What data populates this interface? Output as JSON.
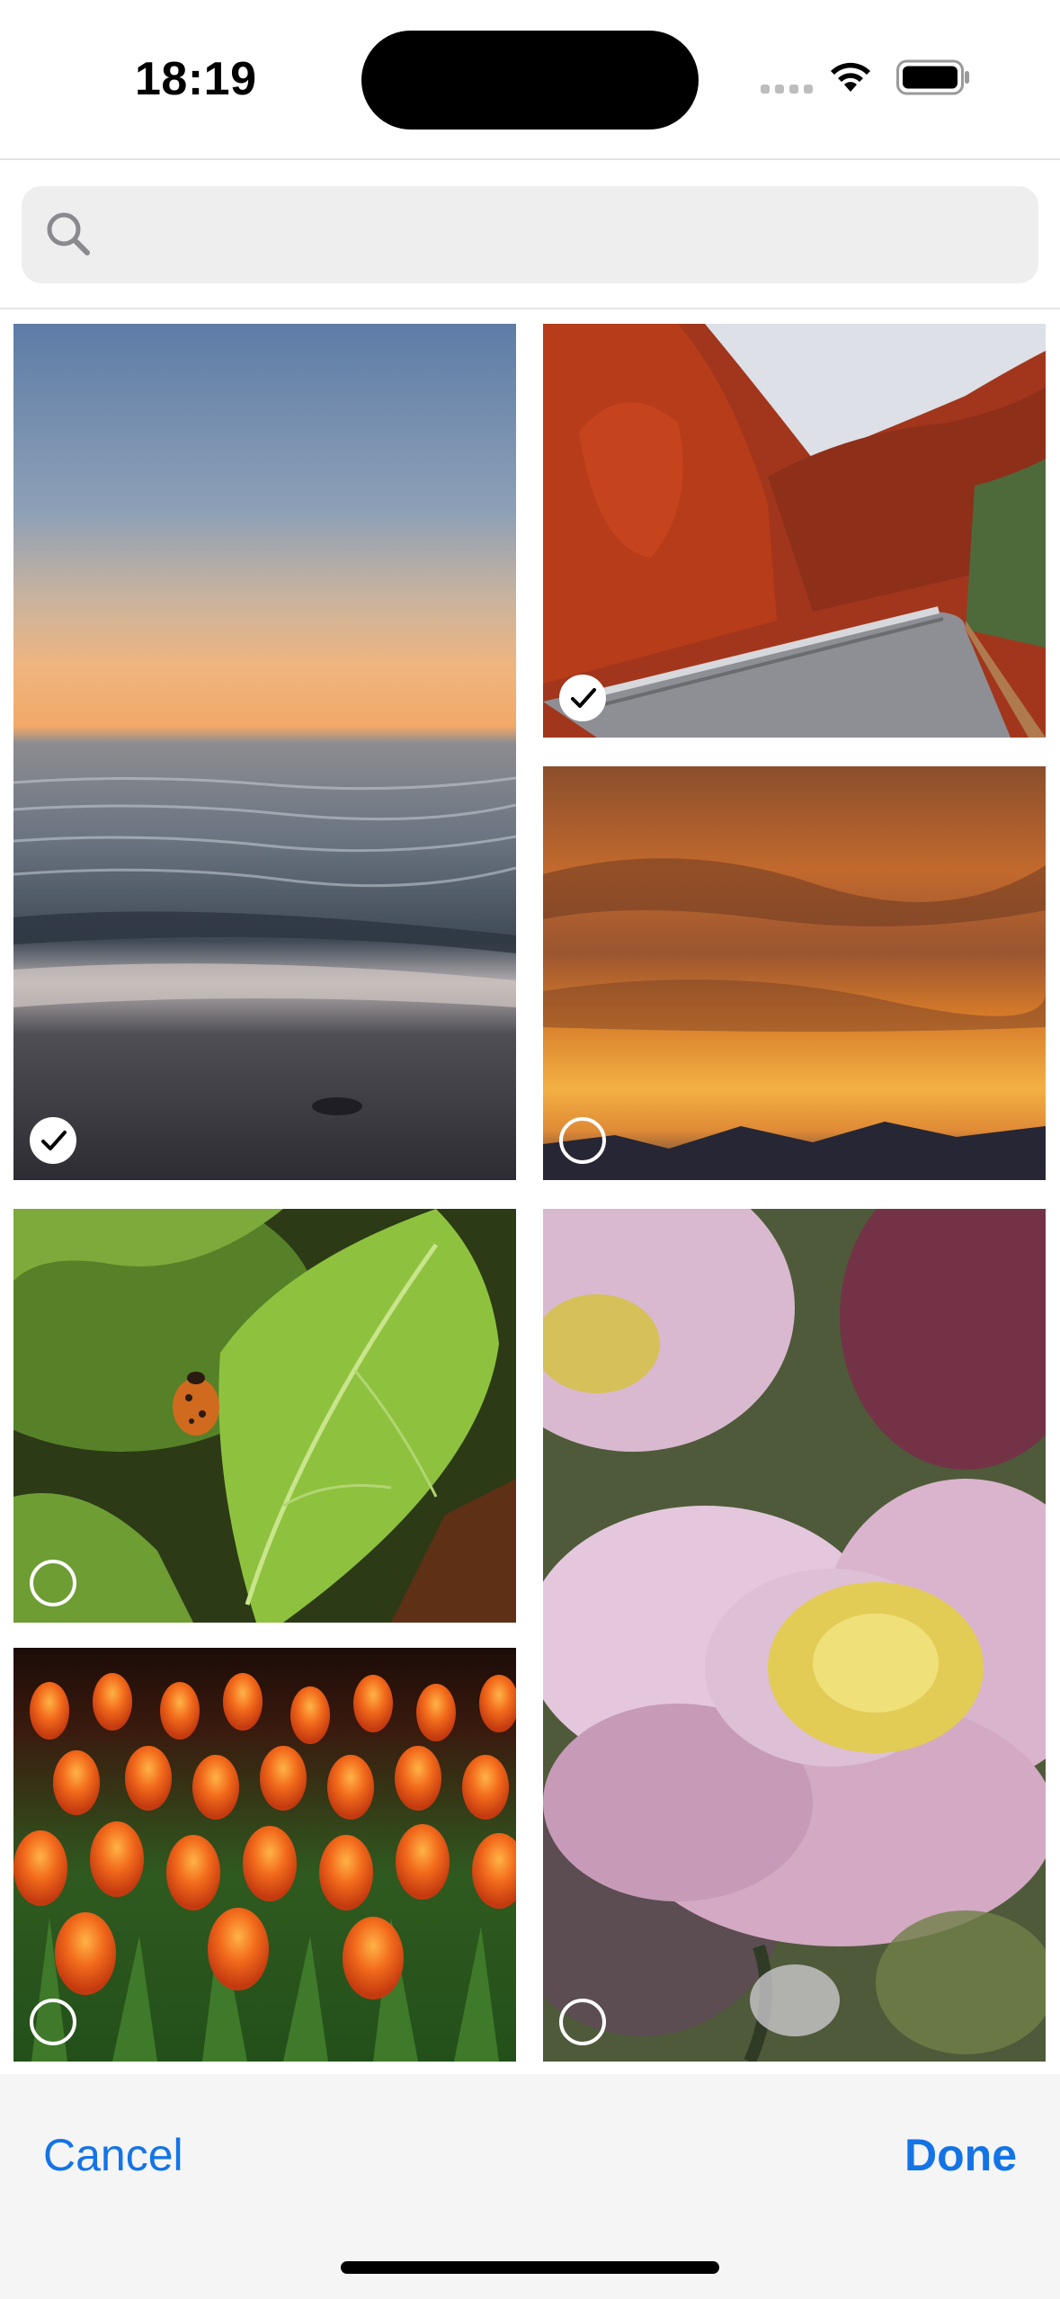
{
  "status_bar": {
    "time": "18:19",
    "icons": [
      "cellular-signal-icon",
      "wifi-icon",
      "battery-icon"
    ]
  },
  "search": {
    "placeholder": "",
    "value": ""
  },
  "photos": [
    {
      "subject": "sea-sunset",
      "selected": true
    },
    {
      "subject": "autumn-road",
      "selected": true
    },
    {
      "subject": "orange-clouds",
      "selected": false
    },
    {
      "subject": "ladybug-leaf",
      "selected": false
    },
    {
      "subject": "pink-flower",
      "selected": false
    },
    {
      "subject": "tulips",
      "selected": false
    }
  ],
  "toolbar": {
    "cancel_label": "Cancel",
    "done_label": "Done"
  },
  "colors": {
    "accent": "#1474e6",
    "background": "#ffffff",
    "toolbar_bg": "#f5f5f6",
    "search_bg": "#eeeeef"
  }
}
